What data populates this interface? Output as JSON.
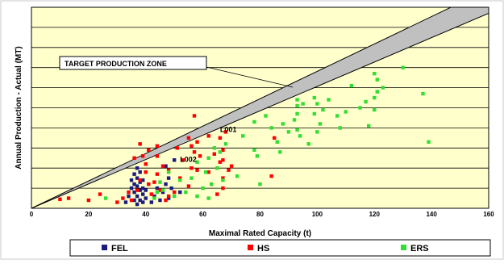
{
  "chart_data": {
    "type": "scatter",
    "title": "",
    "xlabel": "Maximal Rated Capacity (t)",
    "ylabel": "Annual Production - Actual (MT)",
    "xlim": [
      0,
      160
    ],
    "x_ticks": [
      0,
      20,
      40,
      60,
      80,
      100,
      120,
      140,
      160
    ],
    "ylim": [
      0,
      10
    ],
    "y_gridlines": [
      1,
      2,
      3,
      4,
      5,
      6,
      7,
      8,
      9,
      10
    ],
    "y_tick_labels_shown": false,
    "grid": true,
    "plot_background": "#ffffcc",
    "legend_position": "bottom",
    "target_zone": {
      "label": "TARGET PRODUCTION ZONE",
      "fill": "#c0c0c0",
      "upper_line": [
        [
          0,
          0
        ],
        [
          160,
          10.9
        ]
      ],
      "lower_line": [
        [
          0,
          0
        ],
        [
          160,
          9.7
        ]
      ]
    },
    "annotations": [
      {
        "text": "L001",
        "x": 66,
        "y": 3.8,
        "color": "#000000"
      },
      {
        "text": "L002",
        "x": 52,
        "y": 2.3,
        "color": "#000000"
      }
    ],
    "series": [
      {
        "name": "FEL",
        "color": "#1a1a80",
        "points": [
          [
            33,
            0.3
          ],
          [
            34,
            0.6
          ],
          [
            35,
            1.0
          ],
          [
            35,
            1.4
          ],
          [
            36,
            0.4
          ],
          [
            36,
            0.8
          ],
          [
            36,
            1.2
          ],
          [
            36,
            1.7
          ],
          [
            37,
            0.2
          ],
          [
            37,
            0.6
          ],
          [
            37,
            1.1
          ],
          [
            37,
            1.5
          ],
          [
            37,
            2.0
          ],
          [
            38,
            0.4
          ],
          [
            38,
            0.9
          ],
          [
            38,
            1.3
          ],
          [
            38,
            1.8
          ],
          [
            39,
            0.3
          ],
          [
            39,
            0.7
          ],
          [
            39,
            1.0
          ],
          [
            39,
            1.4
          ],
          [
            40,
            0.5
          ],
          [
            40,
            0.9
          ],
          [
            42,
            0.3
          ],
          [
            43,
            0.6
          ],
          [
            44,
            1.0
          ],
          [
            45,
            0.4
          ],
          [
            46,
            0.8
          ],
          [
            47,
            1.2
          ],
          [
            47,
            2.1
          ],
          [
            48,
            0.5
          ],
          [
            48,
            1.5
          ],
          [
            49,
            1.0
          ],
          [
            50,
            2.4
          ],
          [
            52,
            0.8
          ]
        ]
      },
      {
        "name": "HS",
        "color": "#ff0000",
        "points": [
          [
            10,
            0.45
          ],
          [
            13,
            0.5
          ],
          [
            20,
            0.4
          ],
          [
            24,
            0.7
          ],
          [
            30,
            0.3
          ],
          [
            32,
            0.5
          ],
          [
            34,
            0.8
          ],
          [
            35,
            0.4
          ],
          [
            36,
            2.5
          ],
          [
            37,
            0.9
          ],
          [
            38,
            1.4
          ],
          [
            38,
            3.2
          ],
          [
            39,
            2.6
          ],
          [
            40,
            1.8
          ],
          [
            40,
            2.2
          ],
          [
            41,
            1.2
          ],
          [
            41,
            2.9
          ],
          [
            42,
            0.7
          ],
          [
            43,
            1.3
          ],
          [
            44,
            1.7
          ],
          [
            44,
            2.6
          ],
          [
            44,
            3.1
          ],
          [
            45,
            0.9
          ],
          [
            46,
            2.1
          ],
          [
            47,
            0.4
          ],
          [
            48,
            0.6
          ],
          [
            48,
            1.9
          ],
          [
            50,
            0.8
          ],
          [
            51,
            3.0
          ],
          [
            52,
            1.5
          ],
          [
            53,
            2.4
          ],
          [
            55,
            1.1
          ],
          [
            55,
            3.5
          ],
          [
            56,
            2.0
          ],
          [
            56,
            3.1
          ],
          [
            57,
            2.8
          ],
          [
            57,
            4.6
          ],
          [
            58,
            1.9
          ],
          [
            58,
            3.3
          ],
          [
            59,
            2.6
          ],
          [
            62,
            1.8
          ],
          [
            62,
            3.6
          ],
          [
            63,
            1.2
          ],
          [
            64,
            2.7
          ],
          [
            65,
            0.7
          ],
          [
            66,
            2.3
          ],
          [
            66,
            3.5
          ],
          [
            67,
            1.0
          ],
          [
            67,
            1.5
          ],
          [
            67,
            2.4
          ],
          [
            67,
            2.9
          ],
          [
            68,
            3.8
          ],
          [
            69,
            1.9
          ],
          [
            70,
            2.1
          ],
          [
            84,
            1.6
          ],
          [
            85,
            3.5
          ]
        ]
      },
      {
        "name": "ERS",
        "color": "#33dd33",
        "points": [
          [
            26,
            0.5
          ],
          [
            43,
            0.5
          ],
          [
            44,
            0.8
          ],
          [
            45,
            1.3
          ],
          [
            46,
            0.9
          ],
          [
            48,
            1.8
          ],
          [
            50,
            0.6
          ],
          [
            52,
            1.4
          ],
          [
            54,
            0.8
          ],
          [
            56,
            1.5
          ],
          [
            58,
            2.3
          ],
          [
            58,
            0.6
          ],
          [
            60,
            1.0
          ],
          [
            61,
            1.8
          ],
          [
            62,
            0.5
          ],
          [
            62,
            2.5
          ],
          [
            63,
            1.2
          ],
          [
            64,
            3.0
          ],
          [
            65,
            2.0
          ],
          [
            66,
            2.8
          ],
          [
            67,
            1.4
          ],
          [
            68,
            3.2
          ],
          [
            72,
            1.6
          ],
          [
            74,
            3.6
          ],
          [
            78,
            2.9
          ],
          [
            78,
            4.3
          ],
          [
            79,
            2.6
          ],
          [
            80,
            1.2
          ],
          [
            82,
            4.6
          ],
          [
            84,
            4.0
          ],
          [
            86,
            3.3
          ],
          [
            87,
            2.8
          ],
          [
            88,
            4.2
          ],
          [
            90,
            3.8
          ],
          [
            92,
            4.4
          ],
          [
            93,
            3.9
          ],
          [
            93,
            4.7
          ],
          [
            93,
            5.1
          ],
          [
            93,
            5.4
          ],
          [
            94,
            3.6
          ],
          [
            95,
            5.2
          ],
          [
            97,
            3.2
          ],
          [
            99,
            4.7
          ],
          [
            99,
            5.5
          ],
          [
            100,
            3.8
          ],
          [
            100,
            5.2
          ],
          [
            101,
            4.2
          ],
          [
            102,
            4.9
          ],
          [
            104,
            5.4
          ],
          [
            107,
            4.6
          ],
          [
            108,
            4.0
          ],
          [
            110,
            4.8
          ],
          [
            112,
            6.1
          ],
          [
            115,
            5.0
          ],
          [
            117,
            5.3
          ],
          [
            118,
            4.1
          ],
          [
            120,
            4.9
          ],
          [
            120,
            5.5
          ],
          [
            120,
            6.7
          ],
          [
            121,
            5.8
          ],
          [
            121,
            6.4
          ],
          [
            123,
            6.0
          ],
          [
            130,
            7.0
          ],
          [
            137,
            5.7
          ],
          [
            139,
            3.3
          ]
        ]
      }
    ]
  }
}
